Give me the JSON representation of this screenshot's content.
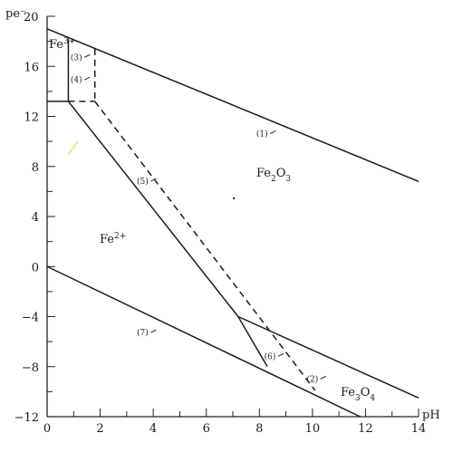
{
  "chart_data": {
    "type": "line",
    "title": "",
    "xlabel": "pH",
    "ylabel": "pe⁻",
    "xlim": [
      0,
      14
    ],
    "ylim": [
      -12,
      20
    ],
    "x_ticks": [
      0,
      2,
      4,
      6,
      8,
      10,
      12,
      14
    ],
    "y_ticks": [
      -12,
      -8,
      -4,
      0,
      4,
      8,
      12,
      16,
      20
    ],
    "series": [
      {
        "name": "(1)",
        "style": "solid",
        "points": [
          [
            0,
            19.0
          ],
          [
            14,
            6.8
          ]
        ]
      },
      {
        "name": "(2)",
        "style": "solid",
        "points": [
          [
            7.2,
            -4.0
          ],
          [
            14,
            -10.5
          ]
        ]
      },
      {
        "name": "(3)",
        "style": "solid",
        "points": [
          [
            0.8,
            18.2
          ],
          [
            0.8,
            13.2
          ]
        ]
      },
      {
        "name": "(3)",
        "style": "dashed",
        "points": [
          [
            1.8,
            17.4
          ],
          [
            1.8,
            13.2
          ]
        ]
      },
      {
        "name": "(4)",
        "style": "dashed",
        "points": [
          [
            0.8,
            13.2
          ],
          [
            1.8,
            13.2
          ]
        ]
      },
      {
        "name": "",
        "style": "solid",
        "points": [
          [
            0,
            13.2
          ],
          [
            0.8,
            13.2
          ]
        ]
      },
      {
        "name": "(5)",
        "style": "solid",
        "points": [
          [
            0.8,
            13.2
          ],
          [
            7.2,
            -4.0
          ]
        ]
      },
      {
        "name": "(5)",
        "style": "dashed",
        "points": [
          [
            1.8,
            13.2
          ],
          [
            10.1,
            -9.9
          ]
        ]
      },
      {
        "name": "(6)",
        "style": "solid",
        "points": [
          [
            7.2,
            -4.0
          ],
          [
            8.3,
            -8.0
          ]
        ]
      },
      {
        "name": "(7)",
        "style": "solid",
        "points": [
          [
            0,
            0
          ],
          [
            11.8,
            -12.0
          ]
        ]
      }
    ],
    "curve_labels": [
      {
        "text": "(1)",
        "x": 8.1,
        "y": 10.4
      },
      {
        "text": "(2)",
        "x": 10.0,
        "y": -9.2
      },
      {
        "text": "(3)",
        "x": 1.1,
        "y": 16.5
      },
      {
        "text": "(4)",
        "x": 1.1,
        "y": 14.7
      },
      {
        "text": "(5)",
        "x": 3.6,
        "y": 6.6
      },
      {
        "text": "(6)",
        "x": 8.4,
        "y": -7.4
      },
      {
        "text": "(7)",
        "x": 3.6,
        "y": -5.5
      }
    ],
    "regions": [
      {
        "html": "Fe<tspan baseline-shift=\"super\" font-size=\"9\">3+</tspan>"
      },
      {
        "html": "Fe<tspan baseline-shift=\"super\" font-size=\"9\">2+</tspan>"
      },
      {
        "html": "Fe<tspan baseline-shift=\"sub\" font-size=\"9\">2</tspan>O<tspan baseline-shift=\"sub\" font-size=\"9\">3</tspan>"
      },
      {
        "html": "Fe<tspan baseline-shift=\"sub\" font-size=\"9\">3</tspan>O<tspan baseline-shift=\"sub\" font-size=\"9\">4</tspan>"
      }
    ]
  }
}
